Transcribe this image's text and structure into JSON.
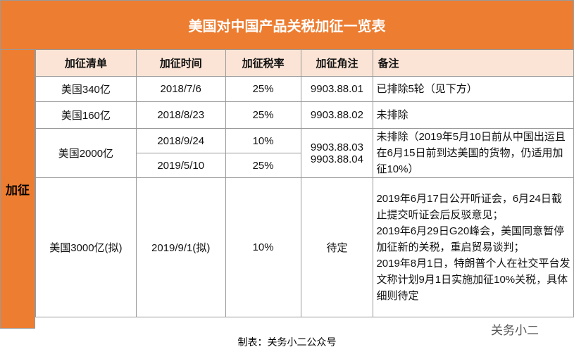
{
  "title": "美国对中国产品关税加征一览表",
  "side_label": "加征",
  "table": {
    "header": [
      "加征清单",
      "加征时间",
      "加征税率",
      "加征角注",
      "备注"
    ],
    "rows": [
      {
        "list": "美国340亿",
        "times": [
          "2018/7/6"
        ],
        "rates": [
          "25%"
        ],
        "codes": [
          "9903.88.01"
        ],
        "remarks": [
          "已排除5轮（见下方）"
        ]
      },
      {
        "list": "美国160亿",
        "times": [
          "2018/8/23"
        ],
        "rates": [
          "25%"
        ],
        "codes": [
          "9903.88.02"
        ],
        "remarks": [
          "未排除"
        ]
      },
      {
        "list": "美国2000亿",
        "times": [
          "2018/9/24",
          "2019/5/10"
        ],
        "rates": [
          "10%",
          "25%"
        ],
        "codes": [
          "9903.88.03",
          "9903.88.04"
        ],
        "remarks": [
          "未排除（2019年5月10日前从中国出运且在6月15日前到达美国的货物，仍适用加征10%）"
        ]
      },
      {
        "list": "美国3000亿(拟)",
        "times": [
          "2019/9/1(拟)"
        ],
        "rates": [
          "10%"
        ],
        "codes": [
          "待定"
        ],
        "remarks": [
          "2019年6月17日公开听证会，6月24日截止提交听证会后反驳意见；",
          "2019年6月29日G20峰会，美国同意暂停加征新的关税，重启贸易谈判；",
          "2019年8月1日，特朗普个人在社交平台发文称计划9月1日实施加征10%关税，具体细则待定"
        ]
      }
    ]
  },
  "footer": "制表：关务小二公众号",
  "watermark": "关务小二"
}
